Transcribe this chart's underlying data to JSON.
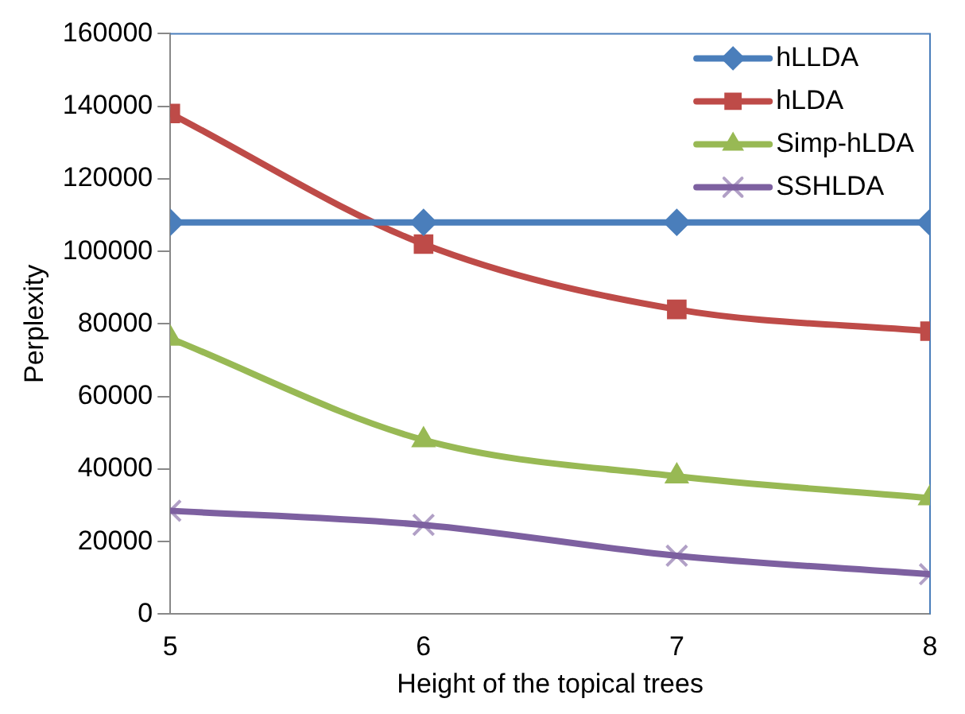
{
  "chart_data": {
    "type": "line",
    "xlabel": "Height of the topical trees",
    "ylabel": "Perplexity",
    "x": [
      5,
      6,
      7,
      8
    ],
    "xlim": [
      5,
      8
    ],
    "xticks": [
      5,
      6,
      7,
      8
    ],
    "ylim": [
      0,
      160000
    ],
    "yticks": [
      0,
      20000,
      40000,
      60000,
      80000,
      100000,
      120000,
      140000,
      160000
    ],
    "legend": "top right",
    "grid": false,
    "line_style": "solid",
    "series": [
      {
        "name": "hLLDA",
        "color": "#4a7ebb",
        "marker": "diamond",
        "values": [
          108000,
          108000,
          108000,
          108000
        ]
      },
      {
        "name": "hLDA",
        "color": "#be4b48",
        "marker": "square",
        "values": [
          138000,
          102000,
          84000,
          78000
        ]
      },
      {
        "name": "Simp-hLDA",
        "color": "#98b954",
        "marker": "triangle",
        "values": [
          76000,
          48000,
          38000,
          32000
        ]
      },
      {
        "name": "SSHLDA",
        "color": "#7d60a0",
        "marker": "cross",
        "values": [
          28500,
          24600,
          16100,
          11000
        ]
      }
    ]
  }
}
